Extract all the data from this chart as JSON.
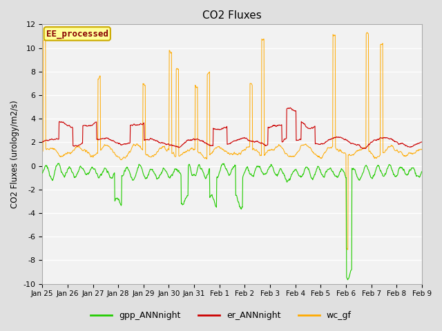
{
  "title": "CO2 Fluxes",
  "ylabel": "CO2 Fluxes (urology/m2/s)",
  "ylim": [
    -10,
    12
  ],
  "yticks": [
    -10,
    -8,
    -6,
    -4,
    -2,
    0,
    2,
    4,
    6,
    8,
    10,
    12
  ],
  "xtick_labels": [
    "Jan 25",
    "Jan 26",
    "Jan 27",
    "Jan 28",
    "Jan 29",
    "Jan 30",
    "Jan 31",
    "Feb 1",
    "Feb 2",
    "Feb 3",
    "Feb 4",
    "Feb 5",
    "Feb 6",
    "Feb 7",
    "Feb 8",
    "Feb 9"
  ],
  "num_days": 16,
  "num_points": 1200,
  "background_color": "#e0e0e0",
  "plot_bg_color": "#f2f2f2",
  "grid_color": "#ffffff",
  "annotation_text": "EE_processed",
  "annotation_bg": "#ffff99",
  "annotation_border": "#ccaa00",
  "annotation_text_color": "#880000",
  "colors": {
    "gpp": "#22cc00",
    "er": "#cc0000",
    "wc": "#ffaa00"
  },
  "legend_labels": [
    "gpp_ANNnight",
    "er_ANNnight",
    "wc_gf"
  ]
}
